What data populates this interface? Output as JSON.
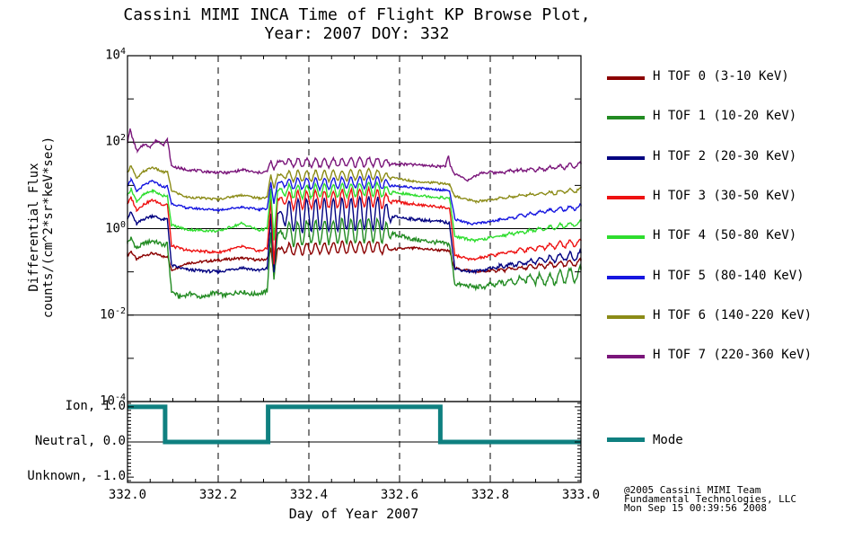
{
  "title": {
    "line1": "Cassini MIMI INCA Time of Flight KP Browse Plot,",
    "line2": "Year: 2007 DOY: 332"
  },
  "axes": {
    "x": {
      "label": "Day of Year 2007",
      "range": [
        332.0,
        333.0
      ],
      "tick_values": [
        332.0,
        332.2,
        332.4,
        332.6,
        332.8,
        333.0
      ],
      "tick_labels": [
        "332.0",
        "332.2",
        "332.4",
        "332.6",
        "332.8",
        "333.0"
      ],
      "minor_step": 0.05,
      "grid_values": [
        332.2,
        332.4,
        332.6,
        332.8
      ]
    },
    "y": {
      "label_line1": "Differential Flux",
      "label_line2": "counts/(cm^2*sr*keV*sec)",
      "scale": "log",
      "range_exponents": [
        -4,
        4
      ],
      "labeled_exponents": [
        4,
        2,
        0,
        -2,
        -4
      ],
      "grid_exponents": [
        2,
        0,
        -2
      ]
    },
    "mode_axis": {
      "range": [
        -1.15,
        1.15
      ],
      "labels": [
        {
          "text": "Ion, 1.0",
          "value": 1.0
        },
        {
          "text": "Neutral, 0.0",
          "value": 0.0
        },
        {
          "text": "Unknown, -1.0",
          "value": -1.0
        }
      ],
      "minor_step": 0.1,
      "zero_line": 0.0
    }
  },
  "chart_data": {
    "type": "line",
    "title": "Cassini MIMI INCA Time of Flight KP Browse Plot, Year: 2007 DOY: 332",
    "xlabel": "Day of Year 2007",
    "ylabel": "Differential Flux counts/(cm^2*sr*keV*sec)",
    "x_range": [
      332.0,
      333.0
    ],
    "y_log_range": [
      -4,
      4
    ],
    "oscillation": {
      "x_start": 332.332,
      "x_end": 332.588,
      "period": 0.0195,
      "taper": 0.025
    },
    "end_wiggle": {
      "x_start": 332.75,
      "x_end": 333.0,
      "period": 0.022
    },
    "series": [
      {
        "name": "H TOF 0 (3-10 KeV)",
        "color": "#8B0000",
        "osc_amp": 0.13,
        "end_amp": 0.08,
        "noise": 0.03,
        "points": [
          [
            332.0,
            -0.62
          ],
          [
            332.008,
            -0.52
          ],
          [
            332.02,
            -0.72
          ],
          [
            332.035,
            -0.62
          ],
          [
            332.055,
            -0.57
          ],
          [
            332.08,
            -0.65
          ],
          [
            332.088,
            -0.63
          ],
          [
            332.097,
            -0.96
          ],
          [
            332.13,
            -0.8
          ],
          [
            332.2,
            -0.73
          ],
          [
            332.252,
            -0.68
          ],
          [
            332.29,
            -0.73
          ],
          [
            332.308,
            -0.7
          ],
          [
            332.316,
            -0.46
          ],
          [
            332.323,
            -1.08
          ],
          [
            332.331,
            -0.47
          ],
          [
            332.36,
            -0.48
          ],
          [
            332.45,
            -0.45
          ],
          [
            332.54,
            -0.42
          ],
          [
            332.585,
            -0.48
          ],
          [
            332.63,
            -0.45
          ],
          [
            332.69,
            -0.5
          ],
          [
            332.71,
            -0.52
          ],
          [
            332.722,
            -0.92
          ],
          [
            332.775,
            -1.0
          ],
          [
            332.83,
            -0.95
          ],
          [
            332.88,
            -0.9
          ],
          [
            332.93,
            -0.85
          ],
          [
            333.0,
            -0.78
          ]
        ]
      },
      {
        "name": "H TOF 1 (10-20 KeV)",
        "color": "#228B22",
        "osc_amp": 0.27,
        "end_amp": 0.18,
        "noise": 0.05,
        "points": [
          [
            332.0,
            -0.32
          ],
          [
            332.008,
            -0.22
          ],
          [
            332.02,
            -0.46
          ],
          [
            332.035,
            -0.35
          ],
          [
            332.055,
            -0.28
          ],
          [
            332.08,
            -0.38
          ],
          [
            332.088,
            -0.36
          ],
          [
            332.097,
            -1.45
          ],
          [
            332.115,
            -1.58
          ],
          [
            332.14,
            -1.5
          ],
          [
            332.165,
            -1.6
          ],
          [
            332.19,
            -1.48
          ],
          [
            332.215,
            -1.55
          ],
          [
            332.25,
            -1.45
          ],
          [
            332.275,
            -1.52
          ],
          [
            332.3,
            -1.48
          ],
          [
            332.308,
            -1.44
          ],
          [
            332.316,
            -0.12
          ],
          [
            332.323,
            -1.15
          ],
          [
            332.331,
            -0.12
          ],
          [
            332.36,
            -0.12
          ],
          [
            332.45,
            -0.07
          ],
          [
            332.54,
            -0.02
          ],
          [
            332.585,
            -0.12
          ],
          [
            332.63,
            -0.25
          ],
          [
            332.69,
            -0.33
          ],
          [
            332.71,
            -0.36
          ],
          [
            332.722,
            -1.28
          ],
          [
            332.775,
            -1.36
          ],
          [
            332.83,
            -1.25
          ],
          [
            332.88,
            -1.15
          ],
          [
            332.93,
            -1.18
          ],
          [
            333.0,
            -1.05
          ]
        ]
      },
      {
        "name": "H TOF 2 (20-30 KeV)",
        "color": "#000080",
        "osc_amp": 0.38,
        "end_amp": 0.1,
        "noise": 0.035,
        "points": [
          [
            332.0,
            0.25
          ],
          [
            332.008,
            0.38
          ],
          [
            332.02,
            0.1
          ],
          [
            332.035,
            0.22
          ],
          [
            332.055,
            0.3
          ],
          [
            332.08,
            0.2
          ],
          [
            332.088,
            0.22
          ],
          [
            332.097,
            -0.85
          ],
          [
            332.13,
            -0.95
          ],
          [
            332.2,
            -1.0
          ],
          [
            332.252,
            -0.9
          ],
          [
            332.29,
            -0.97
          ],
          [
            332.308,
            -0.92
          ],
          [
            332.316,
            0.32
          ],
          [
            332.323,
            -1.0
          ],
          [
            332.331,
            0.32
          ],
          [
            332.36,
            0.3
          ],
          [
            332.45,
            0.32
          ],
          [
            332.54,
            0.36
          ],
          [
            332.585,
            0.28
          ],
          [
            332.63,
            0.22
          ],
          [
            332.69,
            0.16
          ],
          [
            332.71,
            0.13
          ],
          [
            332.722,
            -0.93
          ],
          [
            332.76,
            -1.0
          ],
          [
            332.82,
            -0.88
          ],
          [
            332.88,
            -0.78
          ],
          [
            332.93,
            -0.7
          ],
          [
            333.0,
            -0.62
          ]
        ]
      },
      {
        "name": "H TOF 3 (30-50 KeV)",
        "color": "#EE1111",
        "osc_amp": 0.2,
        "end_amp": 0.08,
        "noise": 0.03,
        "points": [
          [
            332.0,
            0.58
          ],
          [
            332.008,
            0.72
          ],
          [
            332.02,
            0.43
          ],
          [
            332.035,
            0.56
          ],
          [
            332.055,
            0.66
          ],
          [
            332.08,
            0.55
          ],
          [
            332.088,
            0.57
          ],
          [
            332.097,
            -0.4
          ],
          [
            332.13,
            -0.5
          ],
          [
            332.2,
            -0.55
          ],
          [
            332.252,
            -0.42
          ],
          [
            332.29,
            -0.52
          ],
          [
            332.308,
            -0.46
          ],
          [
            332.316,
            0.68
          ],
          [
            332.323,
            -0.82
          ],
          [
            332.331,
            0.68
          ],
          [
            332.36,
            0.66
          ],
          [
            332.45,
            0.68
          ],
          [
            332.54,
            0.72
          ],
          [
            332.585,
            0.64
          ],
          [
            332.63,
            0.56
          ],
          [
            332.69,
            0.5
          ],
          [
            332.71,
            0.47
          ],
          [
            332.722,
            -0.62
          ],
          [
            332.76,
            -0.72
          ],
          [
            332.82,
            -0.58
          ],
          [
            332.88,
            -0.48
          ],
          [
            332.93,
            -0.4
          ],
          [
            333.0,
            -0.32
          ]
        ]
      },
      {
        "name": "H TOF 4 (50-80 KeV)",
        "color": "#2EDD2E",
        "osc_amp": 0.15,
        "end_amp": 0.06,
        "noise": 0.03,
        "points": [
          [
            332.0,
            0.78
          ],
          [
            332.008,
            0.92
          ],
          [
            332.02,
            0.63
          ],
          [
            332.035,
            0.78
          ],
          [
            332.055,
            0.88
          ],
          [
            332.08,
            0.75
          ],
          [
            332.088,
            0.77
          ],
          [
            332.097,
            0.08
          ],
          [
            332.13,
            -0.02
          ],
          [
            332.2,
            -0.06
          ],
          [
            332.252,
            0.12
          ],
          [
            332.29,
            -0.04
          ],
          [
            332.308,
            0.0
          ],
          [
            332.316,
            0.9
          ],
          [
            332.323,
            -0.28
          ],
          [
            332.331,
            0.88
          ],
          [
            332.36,
            0.86
          ],
          [
            332.45,
            0.87
          ],
          [
            332.54,
            0.92
          ],
          [
            332.585,
            0.84
          ],
          [
            332.63,
            0.78
          ],
          [
            332.69,
            0.72
          ],
          [
            332.71,
            0.7
          ],
          [
            332.722,
            -0.18
          ],
          [
            332.768,
            -0.28
          ],
          [
            332.83,
            -0.15
          ],
          [
            332.88,
            -0.06
          ],
          [
            332.93,
            0.02
          ],
          [
            333.0,
            0.13
          ]
        ]
      },
      {
        "name": "H TOF 5 (80-140 KeV)",
        "color": "#1616E0",
        "osc_amp": 0.13,
        "end_amp": 0.05,
        "noise": 0.025,
        "points": [
          [
            332.0,
            1.0
          ],
          [
            332.008,
            1.14
          ],
          [
            332.02,
            0.86
          ],
          [
            332.035,
            1.0
          ],
          [
            332.055,
            1.1
          ],
          [
            332.08,
            0.96
          ],
          [
            332.088,
            0.98
          ],
          [
            332.097,
            0.58
          ],
          [
            332.13,
            0.48
          ],
          [
            332.2,
            0.43
          ],
          [
            332.252,
            0.5
          ],
          [
            332.29,
            0.44
          ],
          [
            332.308,
            0.47
          ],
          [
            332.316,
            1.06
          ],
          [
            332.323,
            0.58
          ],
          [
            332.331,
            1.06
          ],
          [
            332.36,
            1.04
          ],
          [
            332.45,
            1.04
          ],
          [
            332.54,
            1.08
          ],
          [
            332.585,
            1.0
          ],
          [
            332.63,
            0.95
          ],
          [
            332.69,
            0.9
          ],
          [
            332.71,
            0.88
          ],
          [
            332.722,
            0.22
          ],
          [
            332.76,
            0.1
          ],
          [
            332.82,
            0.2
          ],
          [
            332.88,
            0.32
          ],
          [
            332.93,
            0.42
          ],
          [
            333.0,
            0.5
          ]
        ]
      },
      {
        "name": "H TOF 6 (140-220 KeV)",
        "color": "#8B8B17",
        "osc_amp": 0.12,
        "end_amp": 0.05,
        "noise": 0.025,
        "points": [
          [
            332.0,
            1.3
          ],
          [
            332.008,
            1.47
          ],
          [
            332.02,
            1.15
          ],
          [
            332.035,
            1.32
          ],
          [
            332.055,
            1.42
          ],
          [
            332.08,
            1.3
          ],
          [
            332.088,
            1.32
          ],
          [
            332.097,
            0.88
          ],
          [
            332.13,
            0.73
          ],
          [
            332.2,
            0.68
          ],
          [
            332.252,
            0.78
          ],
          [
            332.29,
            0.7
          ],
          [
            332.308,
            0.73
          ],
          [
            332.316,
            1.25
          ],
          [
            332.323,
            0.92
          ],
          [
            332.331,
            1.24
          ],
          [
            332.36,
            1.22
          ],
          [
            332.45,
            1.22
          ],
          [
            332.54,
            1.26
          ],
          [
            332.585,
            1.18
          ],
          [
            332.63,
            1.1
          ],
          [
            332.69,
            1.05
          ],
          [
            332.71,
            1.02
          ],
          [
            332.722,
            0.75
          ],
          [
            332.768,
            0.62
          ],
          [
            332.82,
            0.7
          ],
          [
            332.88,
            0.78
          ],
          [
            332.93,
            0.82
          ],
          [
            333.0,
            0.9
          ]
        ]
      },
      {
        "name": "H TOF 7 (220-360 KeV)",
        "color": "#7A157A",
        "osc_amp": 0.1,
        "end_amp": 0.05,
        "noise": 0.03,
        "points": [
          [
            332.0,
            2.0
          ],
          [
            332.006,
            2.3
          ],
          [
            332.013,
            2.02
          ],
          [
            332.022,
            1.78
          ],
          [
            332.035,
            1.95
          ],
          [
            332.05,
            1.9
          ],
          [
            332.064,
            2.04
          ],
          [
            332.08,
            1.95
          ],
          [
            332.088,
            2.06
          ],
          [
            332.097,
            1.45
          ],
          [
            332.12,
            1.38
          ],
          [
            332.18,
            1.31
          ],
          [
            332.22,
            1.29
          ],
          [
            332.255,
            1.36
          ],
          [
            332.285,
            1.29
          ],
          [
            332.308,
            1.32
          ],
          [
            332.316,
            1.56
          ],
          [
            332.323,
            1.35
          ],
          [
            332.331,
            1.56
          ],
          [
            332.36,
            1.53
          ],
          [
            332.45,
            1.52
          ],
          [
            332.54,
            1.55
          ],
          [
            332.585,
            1.5
          ],
          [
            332.63,
            1.48
          ],
          [
            332.69,
            1.44
          ],
          [
            332.702,
            1.46
          ],
          [
            332.708,
            1.68
          ],
          [
            332.712,
            1.45
          ],
          [
            332.72,
            1.28
          ],
          [
            332.752,
            1.12
          ],
          [
            332.782,
            1.3
          ],
          [
            332.82,
            1.3
          ],
          [
            332.86,
            1.35
          ],
          [
            332.9,
            1.37
          ],
          [
            332.95,
            1.42
          ],
          [
            333.0,
            1.47
          ]
        ]
      }
    ],
    "mode_series": {
      "name": "Mode",
      "color": "#0F8080",
      "values_legend": {
        "ion": 1.0,
        "neutral": 0.0,
        "unknown": -1.0
      },
      "segments": [
        {
          "from": 332.0,
          "to": 332.083,
          "value": 1.0
        },
        {
          "from": 332.083,
          "to": 332.31,
          "value": 0.0
        },
        {
          "from": 332.31,
          "to": 332.69,
          "value": 1.0
        },
        {
          "from": 332.69,
          "to": 333.0,
          "value": 0.0
        }
      ]
    }
  },
  "legend": {
    "mode_label": "Mode"
  },
  "footer": {
    "line1": "@2005 Cassini MIMI Team",
    "line2": "Fundamental Technologies, LLC",
    "line3": "Mon Sep 15 00:39:56 2008"
  }
}
